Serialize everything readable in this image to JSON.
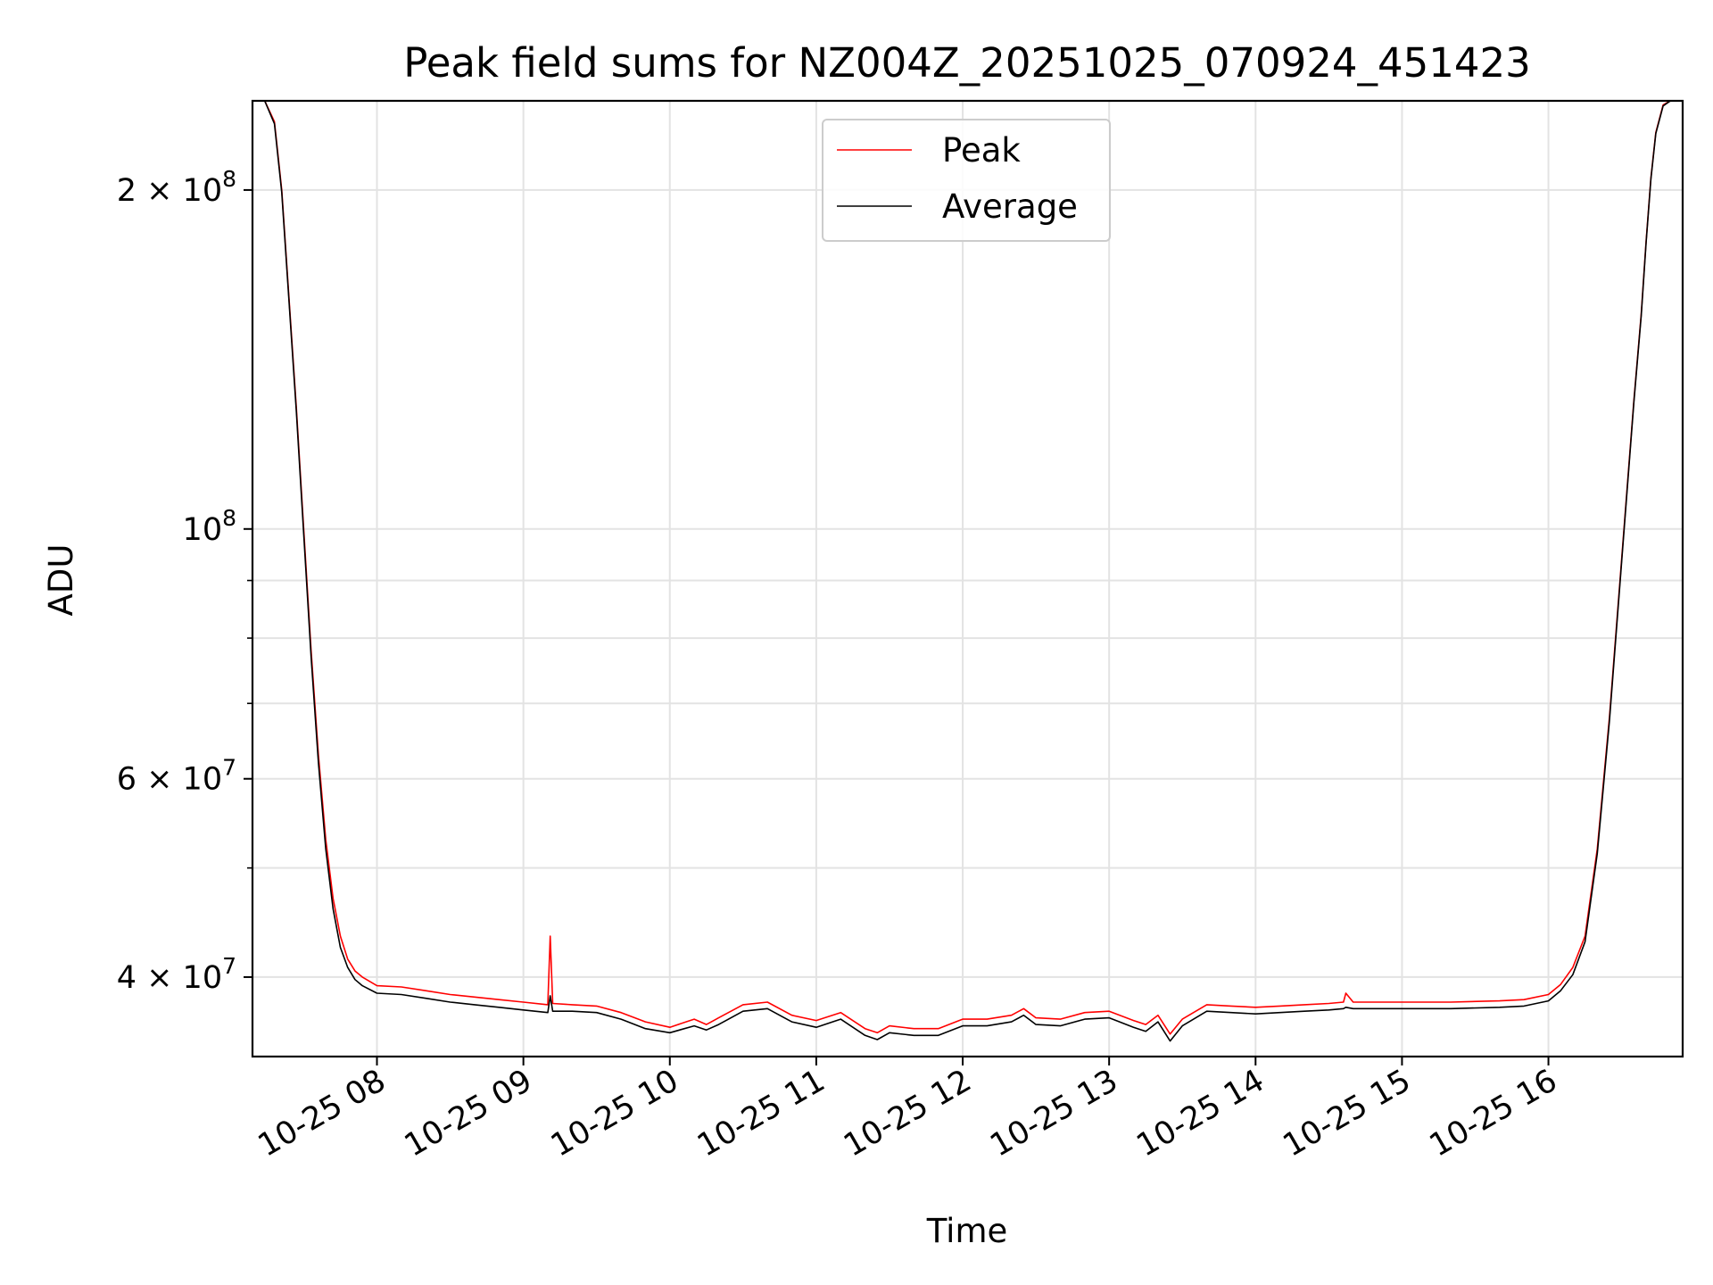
{
  "chart_data": {
    "type": "line",
    "title": "Peak field sums for NZ004Z_20251025_070924_451423",
    "xlabel": "Time",
    "ylabel": "ADU",
    "y_scale": "log",
    "xlim": [
      "2025-10-25 07:09",
      "2025-10-25 16:55"
    ],
    "ylim": [
      34000000,
      240000000
    ],
    "x_ticks": [
      "10-25 08",
      "10-25 09",
      "10-25 10",
      "10-25 11",
      "10-25 12",
      "10-25 13",
      "10-25 14",
      "10-25 15",
      "10-25 16"
    ],
    "y_major_ticks": [
      {
        "value": 40000000,
        "mantissa": "4",
        "exp": "7"
      },
      {
        "value": 60000000,
        "mantissa": "6",
        "exp": "7"
      },
      {
        "value": 100000000,
        "mantissa": "",
        "exp": "8"
      },
      {
        "value": 200000000,
        "mantissa": "2",
        "exp": "8"
      }
    ],
    "y_minor_ticks": [
      50000000,
      70000000,
      80000000,
      90000000
    ],
    "grid": true,
    "legend_position": "top-center",
    "series": [
      {
        "name": "Peak",
        "color": "#ff0000",
        "x": [
          "07:09",
          "07:14",
          "07:18",
          "07:21",
          "07:24",
          "07:27",
          "07:30",
          "07:33",
          "07:36",
          "07:39",
          "07:42",
          "07:45",
          "07:48",
          "07:51",
          "07:54",
          "08:00",
          "08:10",
          "08:20",
          "08:30",
          "08:40",
          "08:50",
          "09:00",
          "09:10",
          "09:11",
          "09:12",
          "09:20",
          "09:30",
          "09:40",
          "09:50",
          "10:00",
          "10:10",
          "10:15",
          "10:20",
          "10:30",
          "10:40",
          "10:50",
          "11:00",
          "11:10",
          "11:20",
          "11:25",
          "11:30",
          "11:40",
          "11:50",
          "12:00",
          "12:10",
          "12:20",
          "12:25",
          "12:30",
          "12:40",
          "12:50",
          "13:00",
          "13:10",
          "13:15",
          "13:20",
          "13:25",
          "13:30",
          "13:40",
          "13:50",
          "14:00",
          "14:10",
          "14:20",
          "14:30",
          "14:36",
          "14:37",
          "14:40",
          "14:50",
          "15:00",
          "15:20",
          "15:40",
          "15:50",
          "16:00",
          "16:05",
          "16:10",
          "16:15",
          "16:20",
          "16:25",
          "16:30",
          "16:35",
          "16:38",
          "16:40",
          "16:42",
          "16:44",
          "16:47",
          "16:50",
          "16:55"
        ],
        "values": [
          240000000,
          240000000,
          230000000,
          200000000,
          160000000,
          128000000,
          100000000,
          78000000,
          63000000,
          53000000,
          47000000,
          43500000,
          41500000,
          40500000,
          40000000,
          39300000,
          39200000,
          38900000,
          38600000,
          38400000,
          38200000,
          38000000,
          37800000,
          43500000,
          37900000,
          37800000,
          37700000,
          37200000,
          36500000,
          36100000,
          36700000,
          36300000,
          36800000,
          37800000,
          38000000,
          37000000,
          36600000,
          37200000,
          36000000,
          35700000,
          36200000,
          36000000,
          36000000,
          36700000,
          36700000,
          37000000,
          37500000,
          36800000,
          36700000,
          37200000,
          37300000,
          36600000,
          36300000,
          37000000,
          35600000,
          36700000,
          37800000,
          37700000,
          37600000,
          37700000,
          37800000,
          37900000,
          38000000,
          38700000,
          38000000,
          38000000,
          38000000,
          38000000,
          38100000,
          38200000,
          38600000,
          39400000,
          40800000,
          43500000,
          52000000,
          68000000,
          94000000,
          130000000,
          155000000,
          180000000,
          205000000,
          225000000,
          238000000,
          240000000,
          240000000
        ]
      },
      {
        "name": "Average",
        "color": "#000000",
        "x": [
          "07:09",
          "07:14",
          "07:18",
          "07:21",
          "07:24",
          "07:27",
          "07:30",
          "07:33",
          "07:36",
          "07:39",
          "07:42",
          "07:45",
          "07:48",
          "07:51",
          "07:54",
          "08:00",
          "08:10",
          "08:20",
          "08:30",
          "08:40",
          "08:50",
          "09:00",
          "09:10",
          "09:11",
          "09:12",
          "09:20",
          "09:30",
          "09:40",
          "09:50",
          "10:00",
          "10:10",
          "10:15",
          "10:20",
          "10:30",
          "10:40",
          "10:50",
          "11:00",
          "11:10",
          "11:20",
          "11:25",
          "11:30",
          "11:40",
          "11:50",
          "12:00",
          "12:10",
          "12:20",
          "12:25",
          "12:30",
          "12:40",
          "12:50",
          "13:00",
          "13:10",
          "13:15",
          "13:20",
          "13:25",
          "13:30",
          "13:40",
          "13:50",
          "14:00",
          "14:10",
          "14:20",
          "14:30",
          "14:36",
          "14:37",
          "14:40",
          "14:50",
          "15:00",
          "15:20",
          "15:40",
          "15:50",
          "16:00",
          "16:05",
          "16:10",
          "16:15",
          "16:20",
          "16:25",
          "16:30",
          "16:35",
          "16:38",
          "16:40",
          "16:42",
          "16:44",
          "16:47",
          "16:50",
          "16:55"
        ],
        "values": [
          240000000,
          240000000,
          229000000,
          199000000,
          159000000,
          127000000,
          99000000,
          77000000,
          62000000,
          52000000,
          46000000,
          42500000,
          40800000,
          39800000,
          39300000,
          38700000,
          38600000,
          38300000,
          38000000,
          37800000,
          37600000,
          37400000,
          37200000,
          38500000,
          37300000,
          37300000,
          37200000,
          36700000,
          36000000,
          35700000,
          36200000,
          35900000,
          36300000,
          37300000,
          37500000,
          36500000,
          36100000,
          36700000,
          35500000,
          35200000,
          35700000,
          35500000,
          35500000,
          36200000,
          36200000,
          36500000,
          37000000,
          36300000,
          36200000,
          36700000,
          36800000,
          36100000,
          35800000,
          36500000,
          35100000,
          36200000,
          37300000,
          37200000,
          37100000,
          37200000,
          37300000,
          37400000,
          37500000,
          37600000,
          37500000,
          37500000,
          37500000,
          37500000,
          37600000,
          37700000,
          38100000,
          38900000,
          40200000,
          43000000,
          51500000,
          67500000,
          93500000,
          129500000,
          154500000,
          179500000,
          204500000,
          224500000,
          237500000,
          240000000,
          240000000
        ]
      }
    ]
  }
}
